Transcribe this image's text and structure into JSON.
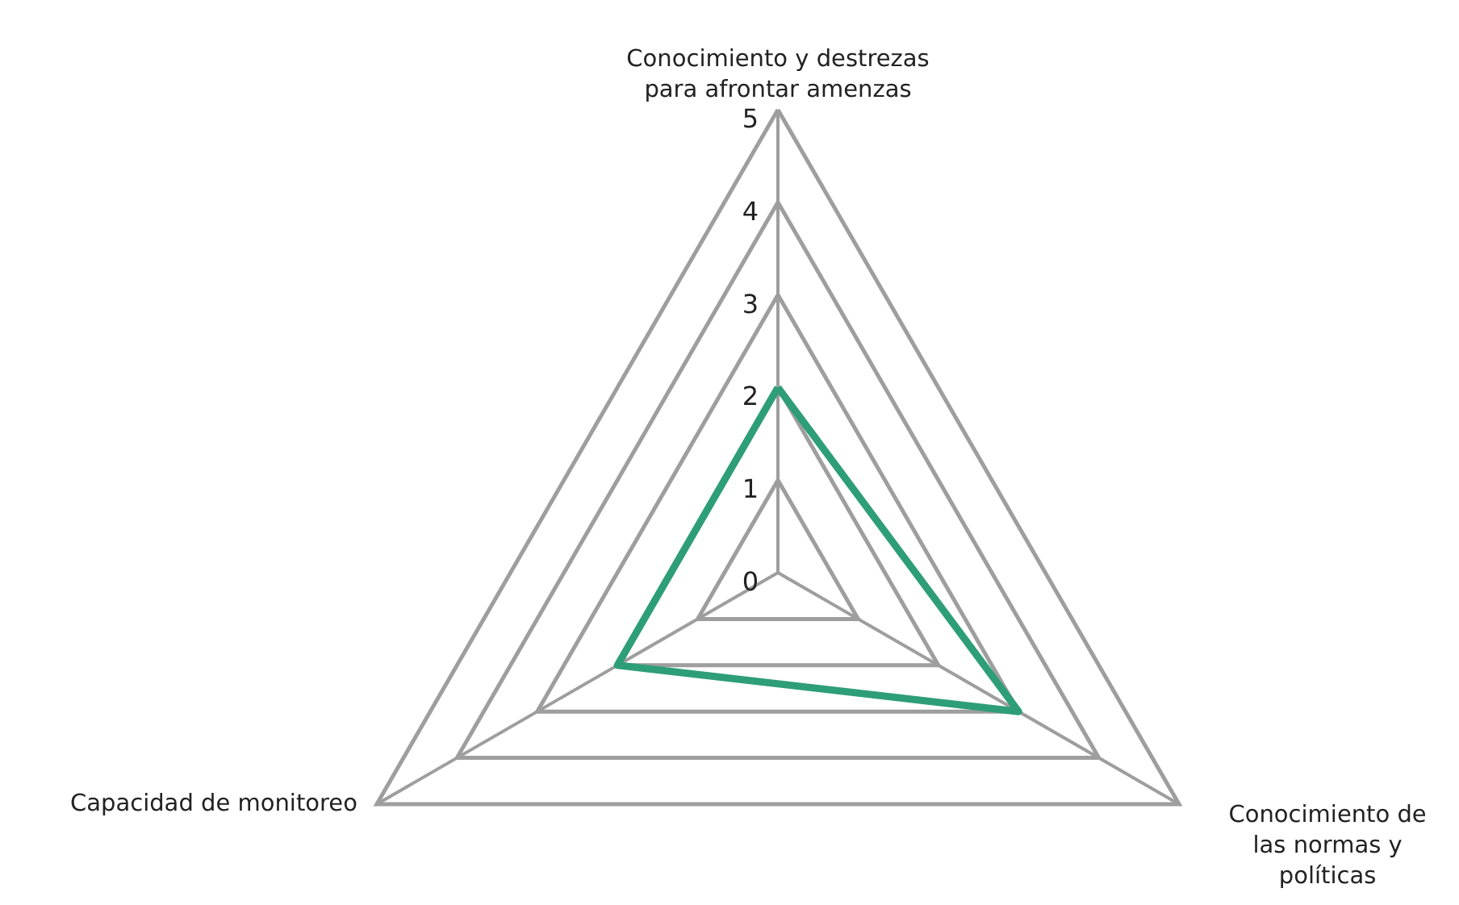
{
  "chart_data": {
    "type": "radar",
    "categories": [
      "Conocimiento y destrezas\npara afrontar amenzas",
      "Conocimiento de\nlas normas y\npolíticas",
      "Capacidad de monitoreo"
    ],
    "series": [
      {
        "color": "#2e9e78",
        "values": [
          2,
          3,
          2
        ]
      }
    ],
    "ylim": [
      0,
      5
    ],
    "yticks": [
      0,
      1,
      2,
      3,
      4,
      5
    ],
    "grid": true
  }
}
